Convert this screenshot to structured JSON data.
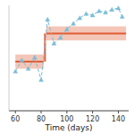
{
  "chart_data": {
    "type": "line",
    "xlabel": "Time (days)",
    "xlim": [
      55,
      148
    ],
    "ylim": [
      30,
      105
    ],
    "xticks": [
      60,
      80,
      100,
      120,
      140
    ],
    "tick_labels": "x",
    "grid": false,
    "series": [
      {
        "type": "band",
        "x": [
          60,
          82
        ],
        "values": [
          65,
          65
        ],
        "lower": [
          60,
          60
        ],
        "upper": [
          70,
          70
        ],
        "color": "#e05c35",
        "line_style": "solid"
      },
      {
        "type": "line",
        "x": [
          83,
          83
        ],
        "values": [
          65,
          85
        ],
        "color": "#e05c35",
        "line_style": "solid"
      },
      {
        "type": "band",
        "x": [
          84,
          146
        ],
        "values": [
          85,
          85
        ],
        "lower": [
          80,
          80
        ],
        "upper": [
          90,
          90
        ],
        "color": "#e05c35",
        "line_style": "solid"
      },
      {
        "type": "line",
        "x": [
          60,
          65,
          70,
          75,
          80,
          85,
          90,
          95,
          100,
          105,
          110,
          115,
          120,
          125,
          130,
          135,
          140,
          143
        ],
        "values": [
          58,
          66,
          60,
          68,
          52,
          95,
          78,
          82,
          88,
          92,
          96,
          99,
          98,
          101,
          100,
          102,
          103,
          97
        ],
        "color": "#7bbdd6",
        "marker": "triangle",
        "line_style": "dashed"
      }
    ]
  }
}
